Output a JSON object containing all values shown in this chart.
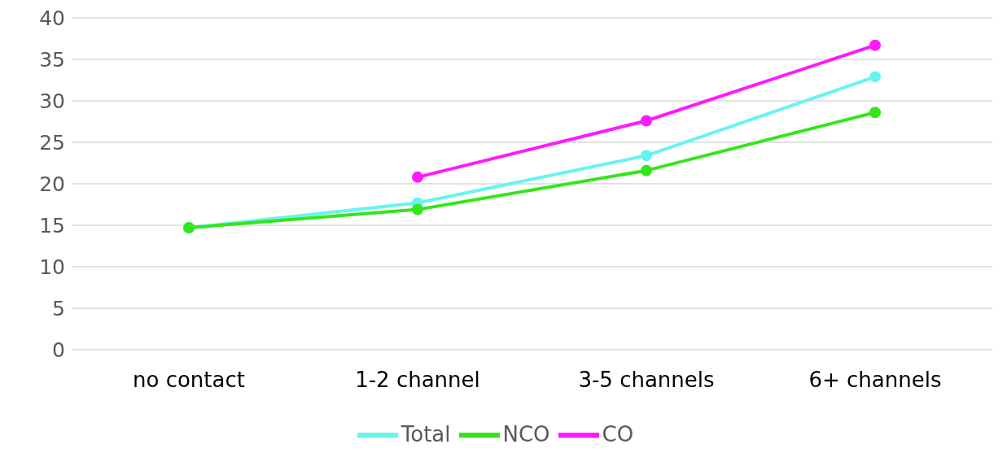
{
  "chart_data": {
    "type": "line",
    "categories": [
      "no contact",
      "1-2 channel",
      "3-5 channels",
      "6+ channels"
    ],
    "series": [
      {
        "name": "Total",
        "color": "#66f5ee",
        "values": [
          14.7,
          17.7,
          23.4,
          32.9
        ]
      },
      {
        "name": "NCO",
        "color": "#33e61a",
        "values": [
          14.7,
          16.9,
          21.6,
          28.6
        ]
      },
      {
        "name": "CO",
        "color": "#ff19ff",
        "values": [
          null,
          20.8,
          27.6,
          36.7
        ]
      }
    ],
    "ylim": [
      0,
      40
    ],
    "yticks": [
      0,
      5,
      10,
      15,
      20,
      25,
      30,
      35,
      40
    ],
    "grid": "y",
    "legend": "bottom",
    "marker": "circle",
    "line_style": "solid"
  }
}
